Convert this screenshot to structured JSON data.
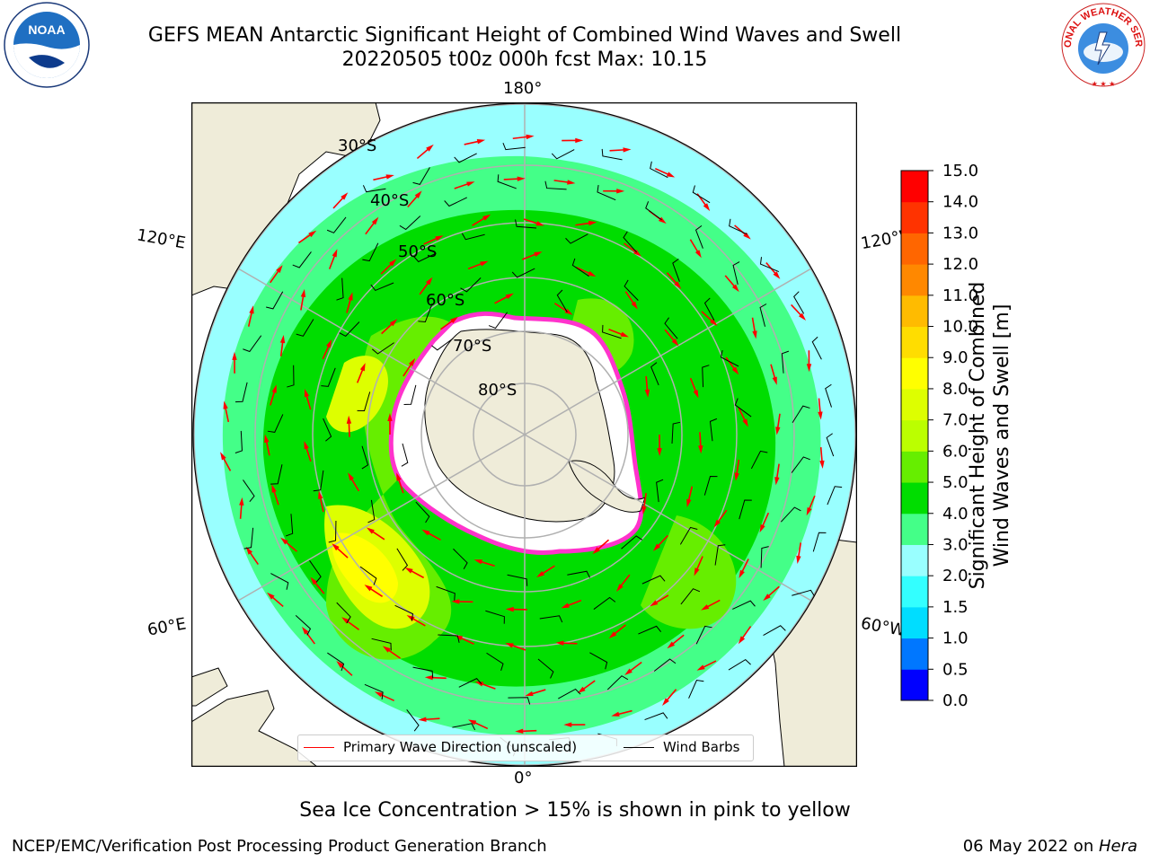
{
  "title": {
    "line1": "GEFS MEAN Antarctic Significant Height of Combined Wind Waves and Swell",
    "line2": "20220505 t00z 000h fcst   Max: 10.15"
  },
  "map": {
    "projection": "south-polar-stereographic",
    "lat_labels": [
      "30°S",
      "40°S",
      "50°S",
      "60°S",
      "70°S",
      "80°S"
    ],
    "lon_labels": {
      "top": "180°",
      "bottom": "0°",
      "upper_left": "120°E",
      "upper_right": "120°W",
      "lower_left": "60°E",
      "lower_right": "60°W"
    },
    "colors": {
      "land": "#efecd9",
      "ice_free_antarctica": "#ffffff",
      "sea_ice_edge": "#ff33cc",
      "wave_arrow": "#ff0000",
      "wind_barb": "#000000",
      "grid": "#b0b0b0"
    }
  },
  "legend": {
    "wave": "Primary Wave Direction (unscaled)",
    "wind": "Wind Barbs"
  },
  "colorbar": {
    "label_line1": "Significant Height of Combined",
    "label_line2": "Wind Waves and Swell [m]",
    "ticks": [
      "0.0",
      "0.5",
      "1.0",
      "1.5",
      "2.0",
      "3.0",
      "4.0",
      "5.0",
      "6.0",
      "7.0",
      "8.0",
      "9.0",
      "10.0",
      "11.0",
      "12.0",
      "13.0",
      "14.0",
      "15.0"
    ],
    "colors": [
      "#0000ff",
      "#0077ff",
      "#00ddff",
      "#33ffff",
      "#99ffff",
      "#44ff88",
      "#00dd00",
      "#66ee00",
      "#bbff00",
      "#ddff00",
      "#ffff00",
      "#ffdd00",
      "#ffbb00",
      "#ff8800",
      "#ff6600",
      "#ff3300",
      "#ff0000"
    ]
  },
  "caption": "Sea Ice Concentration > 15% is shown in pink to yellow",
  "footer": {
    "left": "NCEP/EMC/Verification Post Processing Product Generation Branch",
    "date": "06 May 2022 on ",
    "machine": "Hera"
  },
  "logos": {
    "noaa_text": "NOAA",
    "nws_text": "NATIONAL WEATHER SERVICE"
  }
}
